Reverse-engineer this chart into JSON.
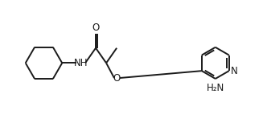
{
  "background": "#ffffff",
  "line_color": "#1a1a1a",
  "line_width": 1.4,
  "font_size": 8.5,
  "figsize": [
    3.27,
    1.58
  ],
  "dpi": 100,
  "xlim": [
    0,
    10
  ],
  "ylim": [
    0,
    5
  ]
}
